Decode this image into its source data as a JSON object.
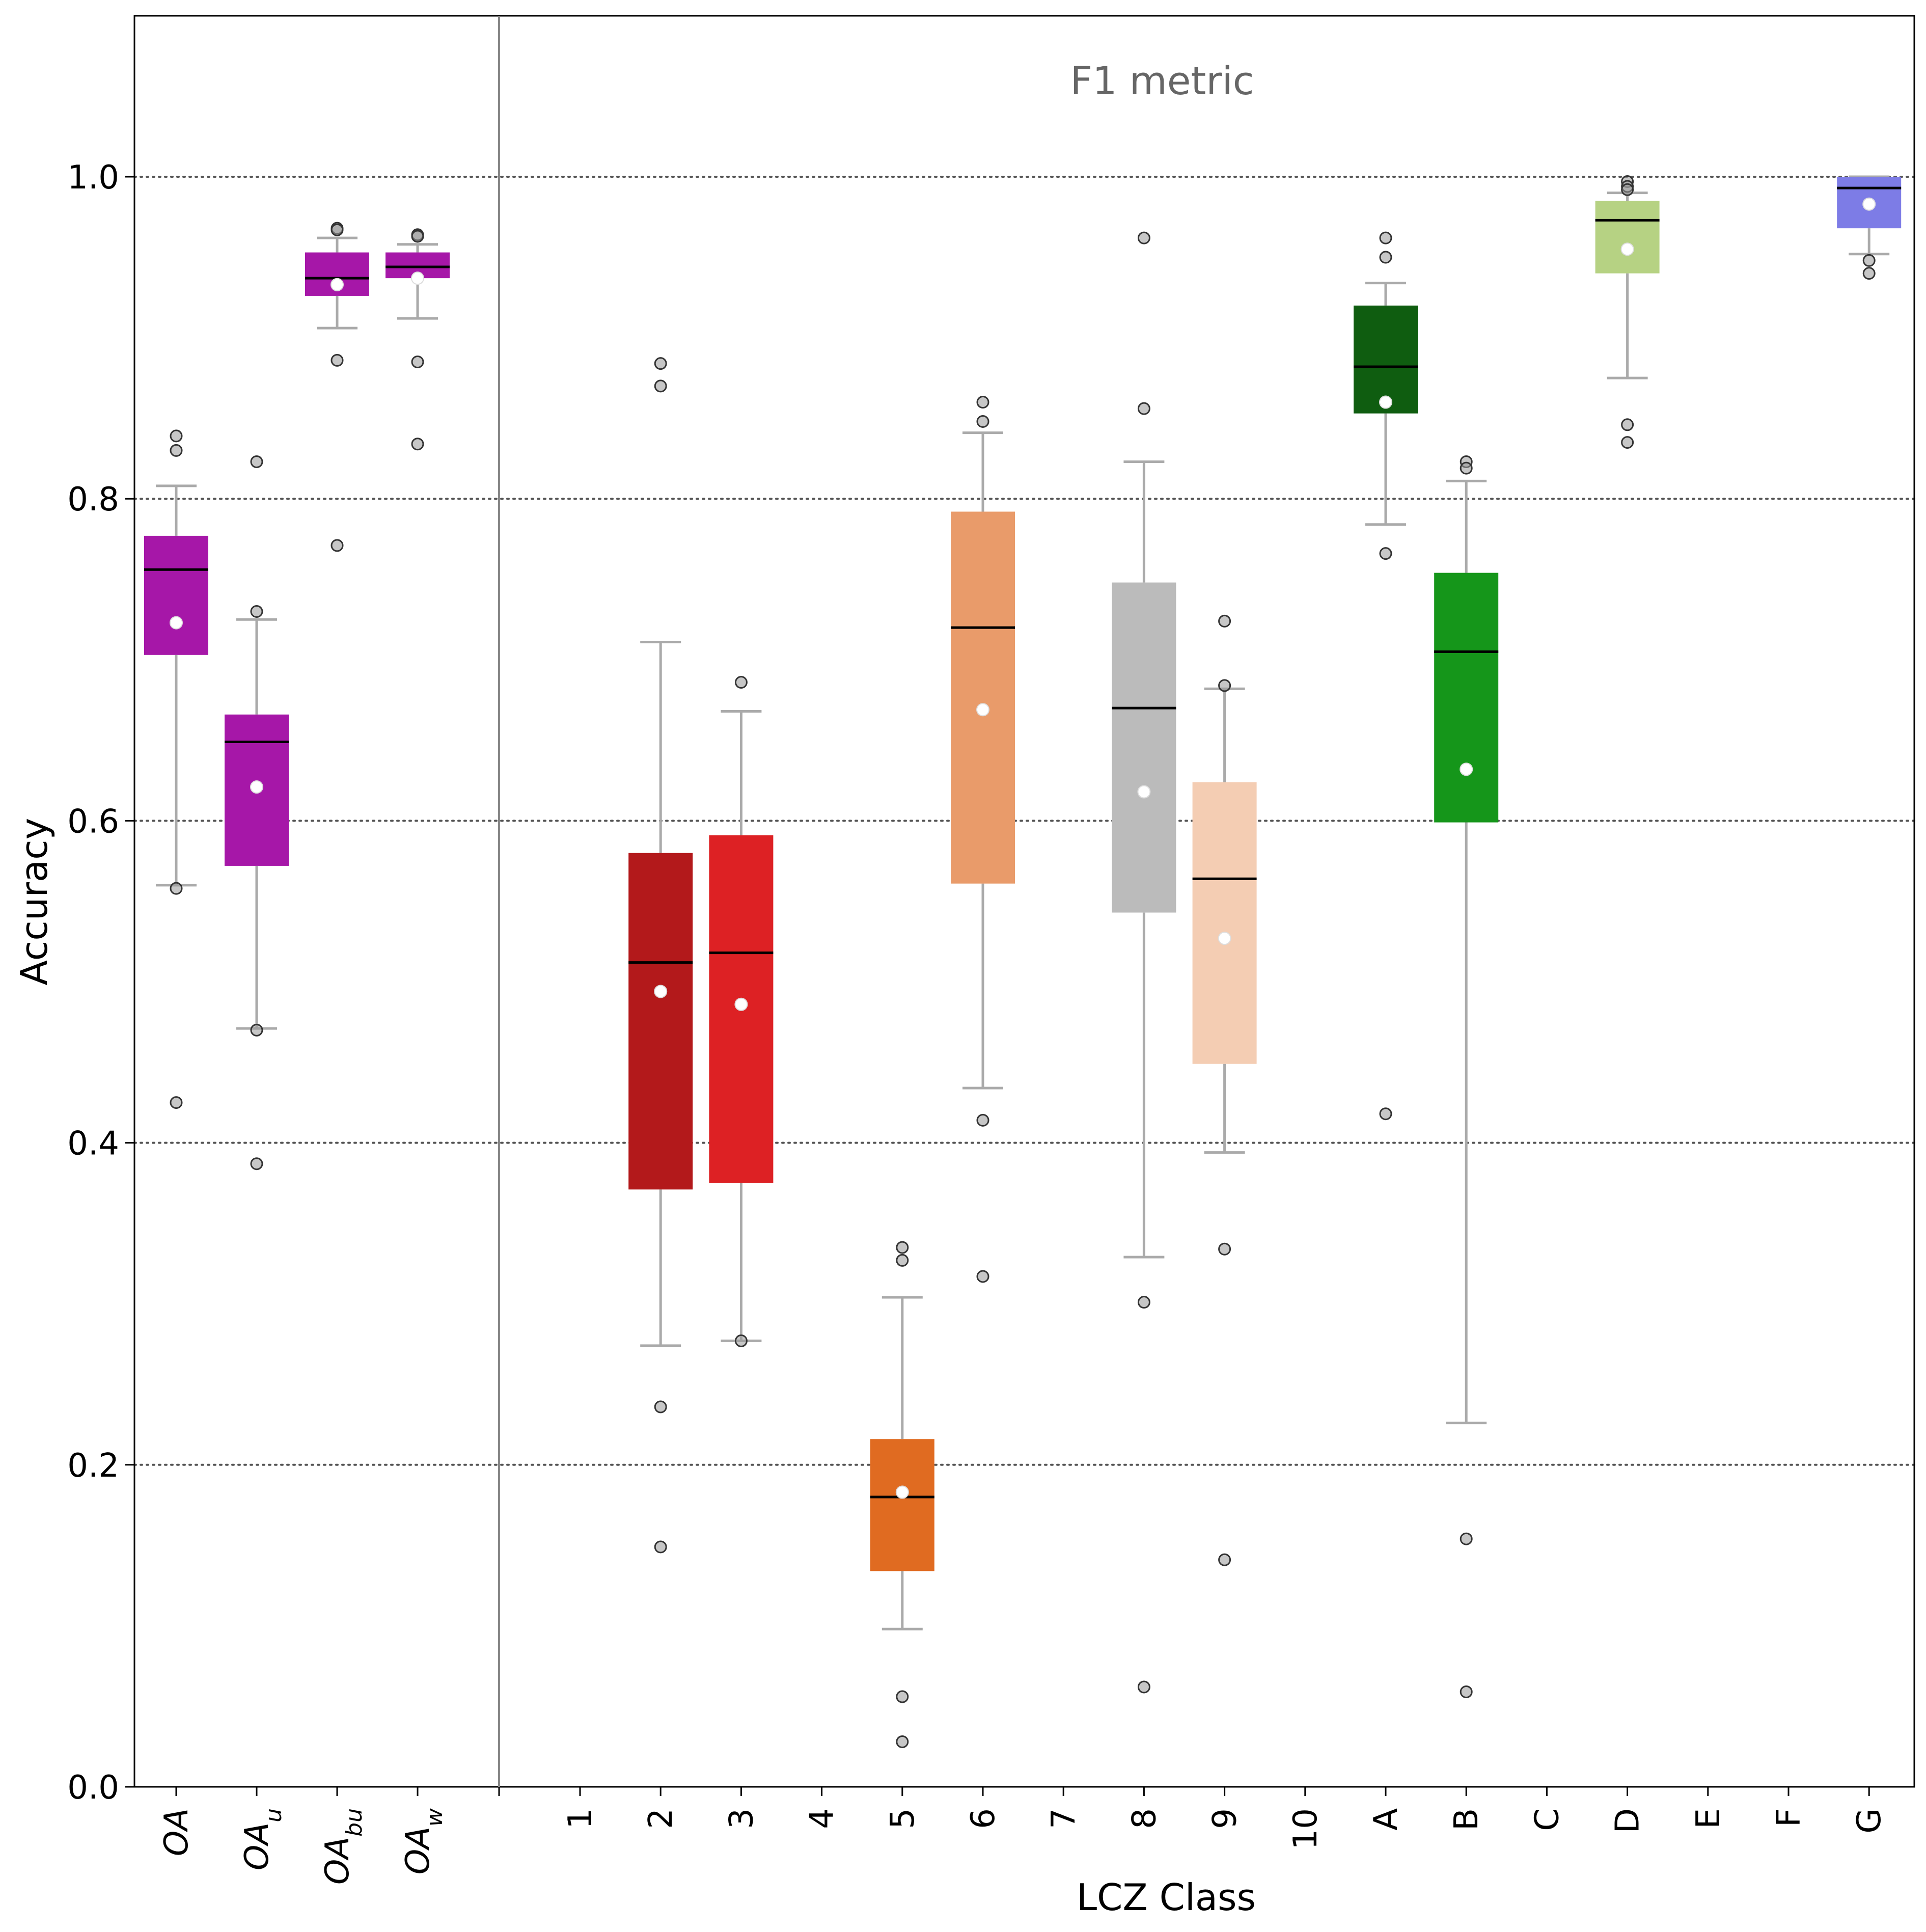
{
  "chart_data": {
    "type": "box",
    "annotation": "F1 metric",
    "xlabel": "LCZ Class",
    "ylabel": "Accuracy",
    "ylim": [
      0.0,
      1.1
    ],
    "yticks": [
      "0.0",
      "0.2",
      "0.4",
      "0.6",
      "0.8",
      "1.0"
    ],
    "ytick_values": [
      0.0,
      0.2,
      0.4,
      0.6,
      0.8,
      1.0
    ],
    "grid": "horizontal dotted at 0.2, 0.4, 0.6, 0.8, 1.0",
    "overall_groups": [
      {
        "label": "OA",
        "base": "OA",
        "sub": "",
        "color": "#a617a8",
        "q1": 0.703,
        "median": 0.756,
        "q3": 0.777,
        "whislo": 0.56,
        "whishi": 0.808,
        "mean": 0.723,
        "fliers": [
          0.839,
          0.83,
          0.558,
          0.425
        ]
      },
      {
        "label": "OAu",
        "base": "OA",
        "sub": "u",
        "color": "#a617a8",
        "q1": 0.572,
        "median": 0.649,
        "q3": 0.666,
        "whislo": 0.471,
        "whishi": 0.725,
        "mean": 0.621,
        "fliers": [
          0.823,
          0.73,
          0.47,
          0.387
        ]
      },
      {
        "label": "OAbu",
        "base": "OA",
        "sub": "bu",
        "color": "#a617a8",
        "q1": 0.926,
        "median": 0.937,
        "q3": 0.953,
        "whislo": 0.906,
        "whishi": 0.962,
        "mean": 0.933,
        "fliers": [
          0.968,
          0.967,
          0.886,
          0.771
        ]
      },
      {
        "label": "OAw",
        "base": "OA",
        "sub": "w",
        "color": "#a617a8",
        "q1": 0.937,
        "median": 0.944,
        "q3": 0.953,
        "whislo": 0.912,
        "whishi": 0.958,
        "mean": 0.937,
        "fliers": [
          0.964,
          0.963,
          0.885,
          0.834
        ]
      }
    ],
    "lcz_classes": [
      {
        "label": "1",
        "color": "",
        "empty": true
      },
      {
        "label": "2",
        "color": "#b3191b",
        "q1": 0.371,
        "median": 0.512,
        "q3": 0.58,
        "whislo": 0.274,
        "whishi": 0.711,
        "mean": 0.494,
        "fliers": [
          0.884,
          0.87,
          0.236,
          0.149
        ]
      },
      {
        "label": "3",
        "color": "#dd2124",
        "q1": 0.375,
        "median": 0.518,
        "q3": 0.591,
        "whislo": 0.277,
        "whishi": 0.668,
        "mean": 0.486,
        "fliers": [
          0.686,
          0.277
        ]
      },
      {
        "label": "4",
        "color": "",
        "empty": true
      },
      {
        "label": "5",
        "color": "#e06b21",
        "q1": 0.134,
        "median": 0.18,
        "q3": 0.216,
        "whislo": 0.098,
        "whishi": 0.304,
        "mean": 0.183,
        "fliers": [
          0.335,
          0.327,
          0.056,
          0.028
        ]
      },
      {
        "label": "6",
        "color": "#e99b6a",
        "q1": 0.561,
        "median": 0.72,
        "q3": 0.792,
        "whislo": 0.434,
        "whishi": 0.841,
        "mean": 0.669,
        "fliers": [
          0.86,
          0.848,
          0.414,
          0.317
        ]
      },
      {
        "label": "7",
        "color": "",
        "empty": true
      },
      {
        "label": "8",
        "color": "#bbbbbb",
        "q1": 0.543,
        "median": 0.67,
        "q3": 0.748,
        "whislo": 0.329,
        "whishi": 0.823,
        "mean": 0.618,
        "fliers": [
          0.962,
          0.856,
          0.301,
          0.062
        ]
      },
      {
        "label": "9",
        "color": "#f4cdb3",
        "q1": 0.449,
        "median": 0.564,
        "q3": 0.624,
        "whislo": 0.394,
        "whishi": 0.682,
        "mean": 0.527,
        "fliers": [
          0.724,
          0.684,
          0.334,
          0.141
        ]
      },
      {
        "label": "10",
        "color": "",
        "empty": true
      },
      {
        "label": "A",
        "color": "#0f5d10",
        "q1": 0.853,
        "median": 0.882,
        "q3": 0.92,
        "whislo": 0.784,
        "whishi": 0.934,
        "mean": 0.86,
        "fliers": [
          0.962,
          0.95,
          0.766,
          0.418
        ]
      },
      {
        "label": "B",
        "color": "#15961a",
        "q1": 0.599,
        "median": 0.705,
        "q3": 0.754,
        "whislo": 0.226,
        "whishi": 0.811,
        "mean": 0.632,
        "fliers": [
          0.823,
          0.819,
          0.154,
          0.059
        ]
      },
      {
        "label": "C",
        "color": "",
        "empty": true
      },
      {
        "label": "D",
        "color": "#b6d283",
        "q1": 0.94,
        "median": 0.973,
        "q3": 0.985,
        "whislo": 0.875,
        "whishi": 0.99,
        "mean": 0.955,
        "fliers": [
          0.997,
          0.994,
          0.992,
          0.846,
          0.835
        ]
      },
      {
        "label": "E",
        "color": "",
        "empty": true
      },
      {
        "label": "F",
        "color": "",
        "empty": true
      },
      {
        "label": "G",
        "color": "#7d7ce6",
        "q1": 0.968,
        "median": 0.993,
        "q3": 1.0,
        "whislo": 0.952,
        "whishi": 1.0,
        "mean": 0.983,
        "fliers": [
          0.948,
          0.94
        ]
      }
    ]
  }
}
